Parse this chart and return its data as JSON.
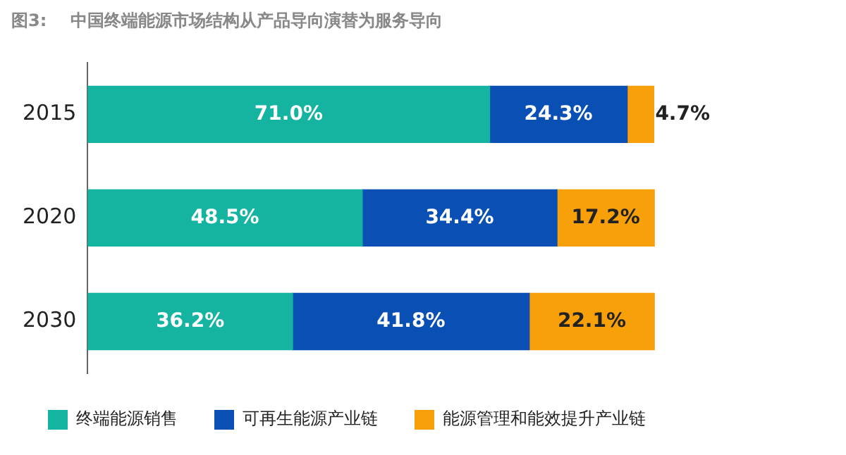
{
  "chart_data": {
    "type": "bar",
    "orientation": "horizontal",
    "stacked": true,
    "tick_labels": "y",
    "title": "图3:    中国终端能源市场结构从产品导向演替为服务导向",
    "categories": [
      "2015",
      "2020",
      "2030"
    ],
    "series": [
      {
        "name": "终端能源销售",
        "color": "#14b4a0",
        "values": [
          71.0,
          48.5,
          36.2
        ],
        "value_labels": [
          "71.0%",
          "48.5%",
          "36.2%"
        ]
      },
      {
        "name": "可再生能源产业链",
        "color": "#0a50b4",
        "values": [
          24.3,
          34.4,
          41.8
        ],
        "value_labels": [
          "24.3%",
          "34.4%",
          "41.8%"
        ]
      },
      {
        "name": "能源管理和能效提升产业链",
        "color": "#f7a00a",
        "values": [
          4.7,
          17.2,
          22.1
        ],
        "value_labels": [
          "4.7%",
          "17.2%",
          "22.1%"
        ]
      }
    ],
    "grid": false,
    "legend": "bottom"
  }
}
